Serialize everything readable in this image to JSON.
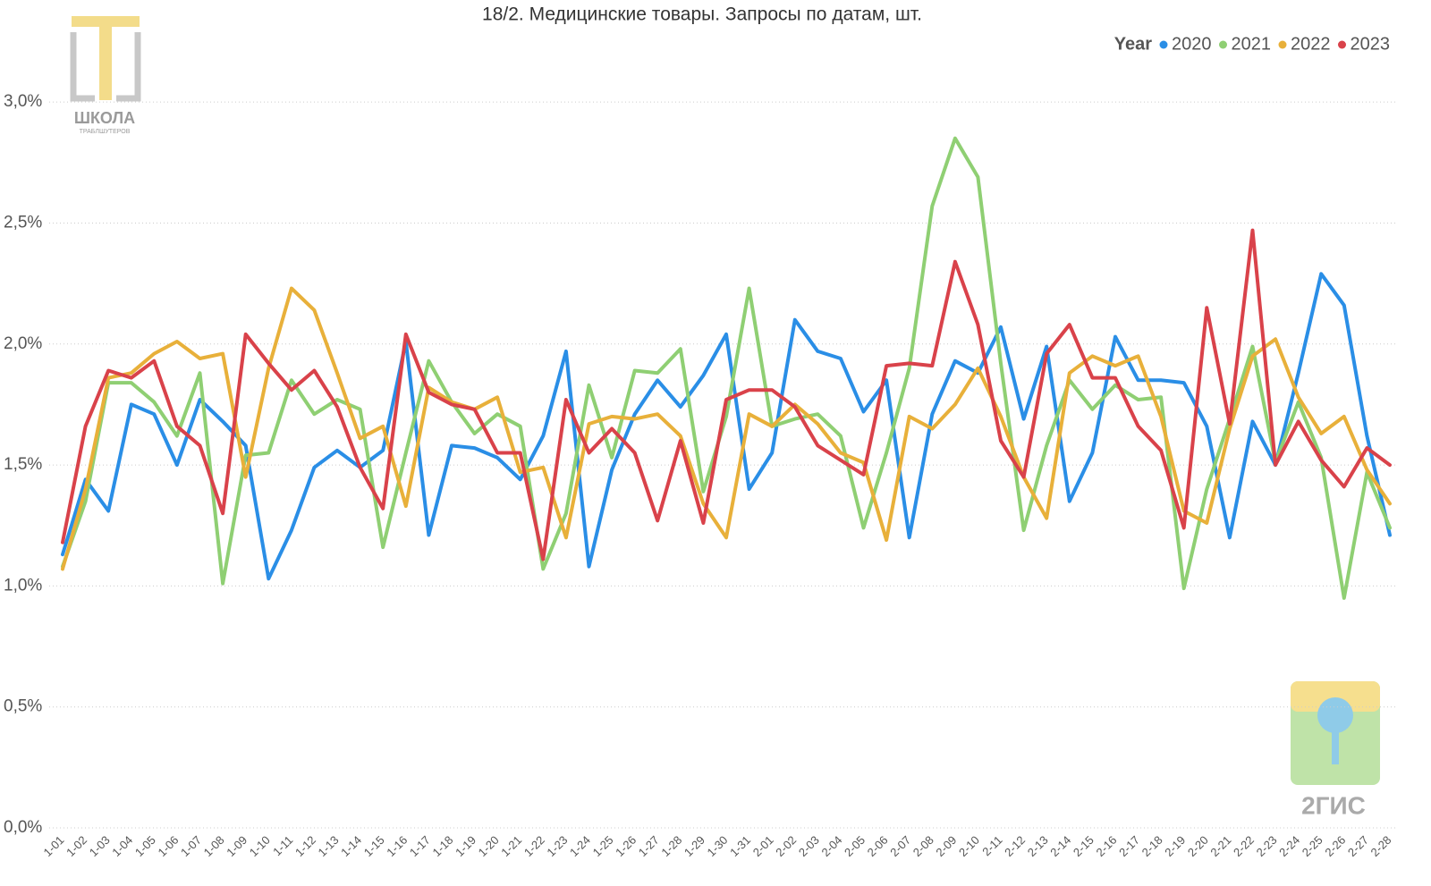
{
  "chart_data": {
    "type": "line",
    "title": "18/2. Медицинские товары. Запросы по датам, шт.",
    "legend_title": "Year",
    "legend_position": "top-right",
    "grid": true,
    "categories": [
      "1-01",
      "1-02",
      "1-03",
      "1-04",
      "1-05",
      "1-06",
      "1-07",
      "1-08",
      "1-09",
      "1-10",
      "1-11",
      "1-12",
      "1-13",
      "1-14",
      "1-15",
      "1-16",
      "1-17",
      "1-18",
      "1-19",
      "1-20",
      "1-21",
      "1-22",
      "1-23",
      "1-24",
      "1-25",
      "1-26",
      "1-27",
      "1-28",
      "1-29",
      "1-30",
      "1-31",
      "2-01",
      "2-02",
      "2-03",
      "2-04",
      "2-05",
      "2-06",
      "2-07",
      "2-08",
      "2-09",
      "2-10",
      "2-11",
      "2-12",
      "2-13",
      "2-14",
      "2-15",
      "2-16",
      "2-17",
      "2-18",
      "2-19",
      "2-20",
      "2-21",
      "2-22",
      "2-23",
      "2-24",
      "2-25",
      "2-26",
      "2-27",
      "2-28"
    ],
    "ylim": [
      0,
      3.2
    ],
    "yticks": [
      {
        "value": 0,
        "label": "0,0%"
      },
      {
        "value": 0.5,
        "label": "0,5%"
      },
      {
        "value": 1,
        "label": "1,0%"
      },
      {
        "value": 1.5,
        "label": "1,5%"
      },
      {
        "value": 2,
        "label": "2,0%"
      },
      {
        "value": 2.5,
        "label": "2,5%"
      },
      {
        "value": 3,
        "label": "3,0%"
      }
    ],
    "series": [
      {
        "name": "2020",
        "color": "#2a8ee6",
        "values": [
          1.13,
          1.44,
          1.31,
          1.75,
          1.71,
          1.5,
          1.77,
          1.68,
          1.58,
          1.03,
          1.23,
          1.49,
          1.56,
          1.49,
          1.56,
          2.01,
          1.21,
          1.58,
          1.57,
          1.53,
          1.44,
          1.62,
          1.97,
          1.08,
          1.48,
          1.71,
          1.85,
          1.74,
          1.87,
          2.04,
          1.4,
          1.55,
          2.1,
          1.97,
          1.94,
          1.72,
          1.85,
          1.2,
          1.71,
          1.93,
          1.88,
          2.07,
          1.69,
          1.99,
          1.35,
          1.55,
          2.03,
          1.85,
          1.85,
          1.84,
          1.66,
          1.2,
          1.68,
          1.5,
          1.88,
          2.29,
          2.16,
          1.62,
          1.21
        ]
      },
      {
        "name": "2021",
        "color": "#8fcf73",
        "values": [
          1.08,
          1.35,
          1.84,
          1.84,
          1.76,
          1.62,
          1.88,
          1.01,
          1.54,
          1.55,
          1.85,
          1.71,
          1.77,
          1.73,
          1.16,
          1.55,
          1.93,
          1.76,
          1.63,
          1.71,
          1.66,
          1.07,
          1.3,
          1.83,
          1.53,
          1.89,
          1.88,
          1.98,
          1.39,
          1.7,
          2.23,
          1.66,
          1.69,
          1.71,
          1.62,
          1.24,
          1.55,
          1.9,
          2.57,
          2.85,
          2.69,
          1.92,
          1.23,
          1.58,
          1.85,
          1.73,
          1.83,
          1.77,
          1.78,
          0.99,
          1.4,
          1.69,
          1.99,
          1.51,
          1.76,
          1.53,
          0.95,
          1.47,
          1.24
        ]
      },
      {
        "name": "2022",
        "color": "#e8b03a",
        "values": [
          1.07,
          1.4,
          1.86,
          1.88,
          1.96,
          2.01,
          1.94,
          1.96,
          1.45,
          1.9,
          2.23,
          2.14,
          1.88,
          1.61,
          1.66,
          1.33,
          1.82,
          1.76,
          1.73,
          1.78,
          1.47,
          1.49,
          1.2,
          1.67,
          1.7,
          1.69,
          1.71,
          1.62,
          1.34,
          1.2,
          1.71,
          1.66,
          1.75,
          1.67,
          1.55,
          1.51,
          1.19,
          1.7,
          1.65,
          1.75,
          1.9,
          1.7,
          1.45,
          1.28,
          1.88,
          1.95,
          1.91,
          1.95,
          1.7,
          1.31,
          1.26,
          1.65,
          1.95,
          2.02,
          1.78,
          1.63,
          1.7,
          1.48,
          1.34
        ]
      },
      {
        "name": "2023",
        "color": "#d9424a",
        "values": [
          1.18,
          1.66,
          1.89,
          1.86,
          1.93,
          1.66,
          1.58,
          1.3,
          2.04,
          1.92,
          1.81,
          1.89,
          1.74,
          1.49,
          1.32,
          2.04,
          1.8,
          1.75,
          1.73,
          1.55,
          1.55,
          1.11,
          1.77,
          1.55,
          1.65,
          1.55,
          1.27,
          1.6,
          1.26,
          1.77,
          1.81,
          1.81,
          1.74,
          1.58,
          1.52,
          1.46,
          1.91,
          1.92,
          1.91,
          2.34,
          2.08,
          1.6,
          1.45,
          1.96,
          2.08,
          1.86,
          1.86,
          1.66,
          1.56,
          1.24,
          2.15,
          1.67,
          2.47,
          1.5,
          1.68,
          1.52,
          1.41,
          1.57,
          1.5
        ]
      }
    ]
  },
  "logos": {
    "school_name": "ШКОЛА",
    "school_sub": "ТРАБЛШУТЕРОВ",
    "brand": "2ГИС"
  }
}
